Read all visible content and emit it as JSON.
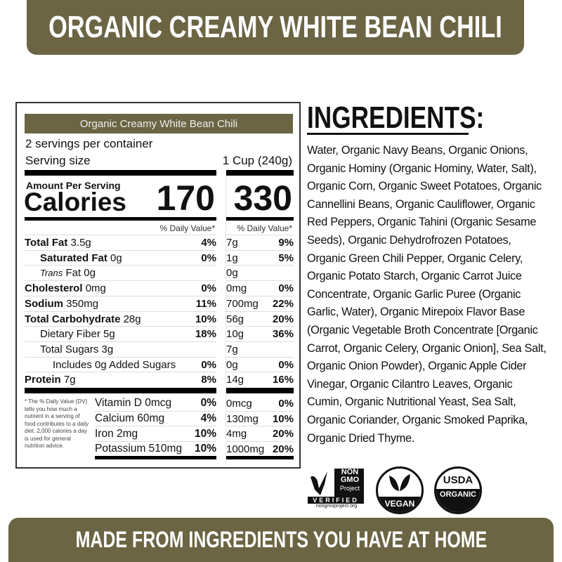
{
  "header": {
    "title": "ORGANIC CREAMY WHITE BEAN CHILI"
  },
  "footer": {
    "tagline": "MADE FROM INGREDIENTS YOU HAVE AT HOME"
  },
  "brand_color": "#6b6544",
  "nutrition": {
    "product": "Organic Creamy White Bean Chili",
    "servings": "2 servings per container",
    "serving_size_label": "Serving size",
    "serving_size": "1 Cup (240g)",
    "amount_per_serving": "Amount Per Serving",
    "calories_label": "Calories",
    "calories": "170",
    "calories_container": "330",
    "dv_header": "% Daily Value*",
    "rows": [
      {
        "label": "Total Fat",
        "bold": true,
        "amount": "3.5g",
        "dv": "4%",
        "c_amount": "7g",
        "c_dv": "9%",
        "indent": 0
      },
      {
        "label": "Saturated Fat",
        "bold": true,
        "amount": "0g",
        "dv": "0%",
        "c_amount": "1g",
        "c_dv": "5%",
        "indent": 1
      },
      {
        "label": "Trans",
        "italic": true,
        "amount": "Fat  0g",
        "dv": "",
        "c_amount": "0g",
        "c_dv": "",
        "indent": 1
      },
      {
        "label": "Cholesterol",
        "bold": true,
        "amount": "0mg",
        "dv": "0%",
        "c_amount": "0mg",
        "c_dv": "0%",
        "indent": 0
      },
      {
        "label": "Sodium",
        "bold": true,
        "amount": "350mg",
        "dv": "11%",
        "c_amount": "700mg",
        "c_dv": "22%",
        "indent": 0
      },
      {
        "label": "Total Carbohydrate",
        "bold": true,
        "amount": "28g",
        "dv": "10%",
        "c_amount": "56g",
        "c_dv": "20%",
        "indent": 0
      },
      {
        "label": "Dietary Fiber 5g",
        "amount": "",
        "dv": "18%",
        "c_amount": "10g",
        "c_dv": "36%",
        "indent": 1
      },
      {
        "label": "Total Sugars 3g",
        "amount": "",
        "dv": "",
        "c_amount": "7g",
        "c_dv": "",
        "indent": 1
      },
      {
        "label": "Includes 0g Added Sugars",
        "amount": "",
        "dv": "0%",
        "c_amount": "0g",
        "c_dv": "0%",
        "indent": 2
      },
      {
        "label": "Protein",
        "bold": true,
        "amount": "7g",
        "dv": "8%",
        "c_amount": "14g",
        "c_dv": "16%",
        "indent": 0
      }
    ],
    "micros": [
      {
        "label": "Vitamin D 0mcg",
        "dv": "0%",
        "c_amount": "0mcg",
        "c_dv": "0%"
      },
      {
        "label": "Calcium 60mg",
        "dv": "4%",
        "c_amount": "130mg",
        "c_dv": "10%"
      },
      {
        "label": "Iron 2mg",
        "dv": "10%",
        "c_amount": "4mg",
        "c_dv": "20%"
      },
      {
        "label": "Potassium 510mg",
        "dv": "10%",
        "c_amount": "1000mg",
        "c_dv": "20%"
      }
    ],
    "footnote": "* The % Daily Value (DV) tells you how much a nutrient in a serving of food contributes to a daily diet. 2,000 calories a day is used for general nutrition advice."
  },
  "ingredients": {
    "heading": "INGREDIENTS:",
    "text": "Water, Organic Navy Beans, Organic Onions, Organic Hominy (Organic Hominy, Water, Salt), Organic Corn, Organic Sweet Potatoes, Organic Cannellini Beans, Organic Cauliflower, Organic Red Peppers, Organic Tahini (Organic Sesame Seeds), Organic Dehydrofrozen Potatoes, Organic Green Chili Pepper, Organic Celery, Organic Potato Starch, Organic Carrot Juice Concentrate, Organic Garlic Puree (Organic Garlic, Water), Organic Mirepoix Flavor Base (Organic Vegetable Broth Concentrate [Organic Carrot, Organic Celery, Organic Onion], Sea Salt, Organic Onion Powder), Organic Apple Cider Vinegar, Organic Cilantro Leaves, Organic Cumin, Organic Nutritional Yeast, Sea Salt, Organic Coriander, Organic Smoked Paprika, Organic Dried Thyme."
  },
  "badges": {
    "nongmo": {
      "l1": "NON",
      "l2": "GMO",
      "l3": "Project",
      "l4": "VERIFIED",
      "url": "nongmoproject.org"
    },
    "vegan": "VEGAN",
    "usda": {
      "l1": "USDA",
      "l2": "ORGANIC"
    }
  }
}
